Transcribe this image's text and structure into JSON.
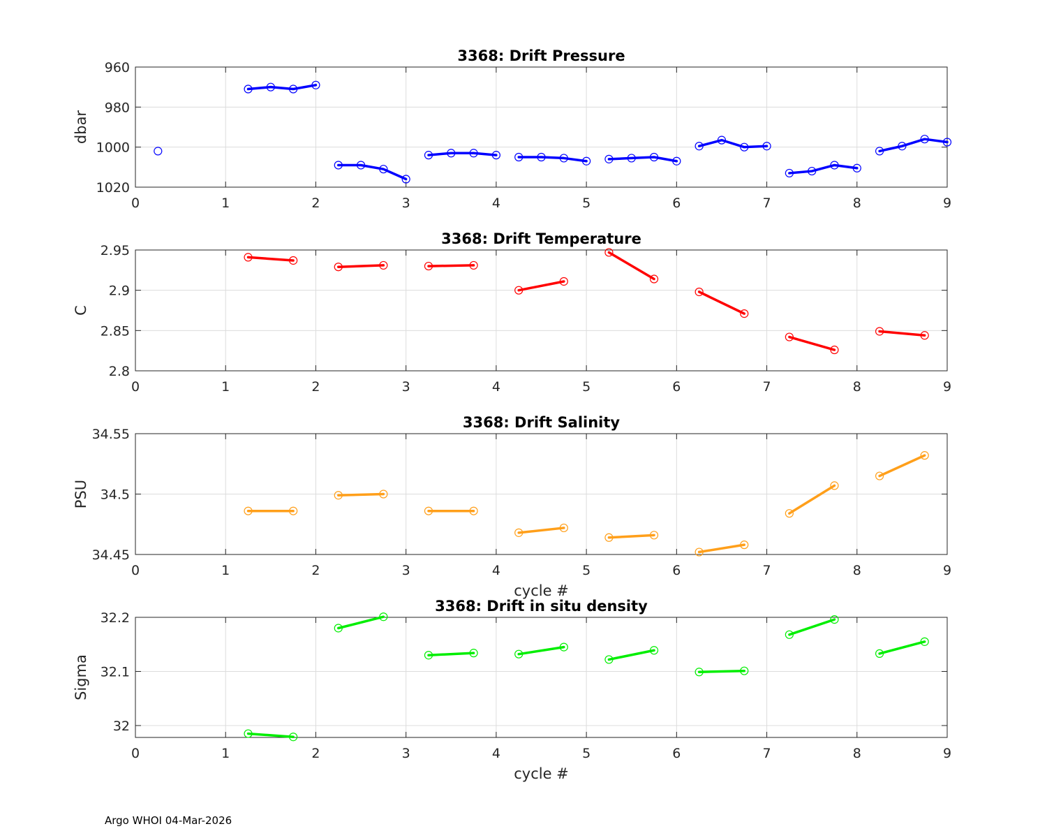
{
  "footer": "Argo WHOI 04-Mar-2026",
  "chart_data": [
    {
      "type": "line",
      "title": "3368: Drift Pressure",
      "xlabel": "",
      "ylabel": "dbar",
      "xlim": [
        0,
        9
      ],
      "ylim": [
        960,
        1020
      ],
      "y_reversed": true,
      "xticks": [
        "0",
        "1",
        "2",
        "3",
        "4",
        "5",
        "6",
        "7",
        "8",
        "9"
      ],
      "yticks": [
        {
          "value": 960,
          "label": "960"
        },
        {
          "value": 980,
          "label": "980"
        },
        {
          "value": 1000,
          "label": "1000"
        },
        {
          "value": 1020,
          "label": "1020"
        }
      ],
      "grid": true,
      "color": "#0000ff",
      "segments": [
        [
          [
            0.25,
            1002
          ]
        ],
        [
          [
            1.25,
            971
          ],
          [
            1.5,
            970
          ],
          [
            1.75,
            971
          ],
          [
            2.0,
            969
          ]
        ],
        [
          [
            2.25,
            1009
          ],
          [
            2.5,
            1009
          ],
          [
            2.75,
            1011
          ],
          [
            3.0,
            1016
          ]
        ],
        [
          [
            3.25,
            1004
          ],
          [
            3.5,
            1003
          ],
          [
            3.75,
            1003
          ],
          [
            4.0,
            1004
          ]
        ],
        [
          [
            4.25,
            1005
          ],
          [
            4.5,
            1005
          ],
          [
            4.75,
            1005.5
          ],
          [
            5.0,
            1007
          ]
        ],
        [
          [
            5.25,
            1006
          ],
          [
            5.5,
            1005.5
          ],
          [
            5.75,
            1005
          ],
          [
            6.0,
            1007
          ]
        ],
        [
          [
            6.25,
            999.5
          ],
          [
            6.5,
            996.5
          ],
          [
            6.75,
            1000
          ],
          [
            7.0,
            999.5
          ]
        ],
        [
          [
            7.25,
            1013
          ],
          [
            7.5,
            1012
          ],
          [
            7.75,
            1009
          ],
          [
            8.0,
            1010.5
          ]
        ],
        [
          [
            8.25,
            1002
          ],
          [
            8.5,
            999.5
          ],
          [
            8.75,
            996
          ],
          [
            9.0,
            997.5
          ]
        ]
      ]
    },
    {
      "type": "line",
      "title": "3368: Drift Temperature",
      "xlabel": "",
      "ylabel": "C",
      "xlim": [
        0,
        9
      ],
      "ylim": [
        2.8,
        2.95
      ],
      "y_reversed": false,
      "xticks": [
        "0",
        "1",
        "2",
        "3",
        "4",
        "5",
        "6",
        "7",
        "8",
        "9"
      ],
      "yticks": [
        {
          "value": 2.8,
          "label": "2.8"
        },
        {
          "value": 2.85,
          "label": "2.85"
        },
        {
          "value": 2.9,
          "label": "2.9"
        },
        {
          "value": 2.95,
          "label": "2.95"
        }
      ],
      "grid": true,
      "color": "#ff0000",
      "segments": [
        [
          [
            1.25,
            2.941
          ],
          [
            1.75,
            2.937
          ]
        ],
        [
          [
            2.25,
            2.929
          ],
          [
            2.75,
            2.931
          ]
        ],
        [
          [
            3.25,
            2.93
          ],
          [
            3.75,
            2.931
          ]
        ],
        [
          [
            4.25,
            2.9
          ],
          [
            4.75,
            2.911
          ]
        ],
        [
          [
            5.25,
            2.947
          ],
          [
            5.75,
            2.914
          ]
        ],
        [
          [
            6.25,
            2.898
          ],
          [
            6.75,
            2.871
          ]
        ],
        [
          [
            7.25,
            2.842
          ],
          [
            7.75,
            2.826
          ]
        ],
        [
          [
            8.25,
            2.849
          ],
          [
            8.75,
            2.844
          ]
        ]
      ]
    },
    {
      "type": "line",
      "title": "3368: Drift Salinity",
      "xlabel": "cycle #",
      "ylabel": "PSU",
      "xlim": [
        0,
        9
      ],
      "ylim": [
        34.45,
        34.55
      ],
      "y_reversed": false,
      "xticks": [
        "0",
        "1",
        "2",
        "3",
        "4",
        "5",
        "6",
        "7",
        "8",
        "9"
      ],
      "yticks": [
        {
          "value": 34.45,
          "label": "34.45"
        },
        {
          "value": 34.5,
          "label": "34.5"
        },
        {
          "value": 34.55,
          "label": "34.55"
        }
      ],
      "grid": true,
      "color": "#ff9f1a",
      "segments": [
        [
          [
            1.25,
            34.486
          ],
          [
            1.75,
            34.486
          ]
        ],
        [
          [
            2.25,
            34.499
          ],
          [
            2.75,
            34.5
          ]
        ],
        [
          [
            3.25,
            34.486
          ],
          [
            3.75,
            34.486
          ]
        ],
        [
          [
            4.25,
            34.468
          ],
          [
            4.75,
            34.472
          ]
        ],
        [
          [
            5.25,
            34.464
          ],
          [
            5.75,
            34.466
          ]
        ],
        [
          [
            6.25,
            34.452
          ],
          [
            6.75,
            34.458
          ]
        ],
        [
          [
            7.25,
            34.484
          ],
          [
            7.75,
            34.507
          ]
        ],
        [
          [
            8.25,
            34.515
          ],
          [
            8.75,
            34.532
          ]
        ]
      ]
    },
    {
      "type": "line",
      "title": "3368: Drift in situ density",
      "xlabel": "cycle #",
      "ylabel": "Sigma",
      "xlim": [
        0,
        9
      ],
      "ylim": [
        31.978,
        32.2
      ],
      "y_reversed": false,
      "xticks": [
        "0",
        "1",
        "2",
        "3",
        "4",
        "5",
        "6",
        "7",
        "8",
        "9"
      ],
      "yticks": [
        {
          "value": 32.0,
          "label": "32"
        },
        {
          "value": 32.1,
          "label": "32.1"
        },
        {
          "value": 32.2,
          "label": "32.2"
        }
      ],
      "grid": true,
      "color": "#00ee00",
      "segments": [
        [
          [
            1.25,
            31.985
          ],
          [
            1.75,
            31.979
          ]
        ],
        [
          [
            2.25,
            32.18
          ],
          [
            2.75,
            32.201
          ]
        ],
        [
          [
            3.25,
            32.13
          ],
          [
            3.75,
            32.134
          ]
        ],
        [
          [
            4.25,
            32.132
          ],
          [
            4.75,
            32.145
          ]
        ],
        [
          [
            5.25,
            32.122
          ],
          [
            5.75,
            32.139
          ]
        ],
        [
          [
            6.25,
            32.099
          ],
          [
            6.75,
            32.101
          ]
        ],
        [
          [
            7.25,
            32.168
          ],
          [
            7.75,
            32.196
          ]
        ],
        [
          [
            8.25,
            32.133
          ],
          [
            8.75,
            32.155
          ]
        ]
      ]
    }
  ]
}
